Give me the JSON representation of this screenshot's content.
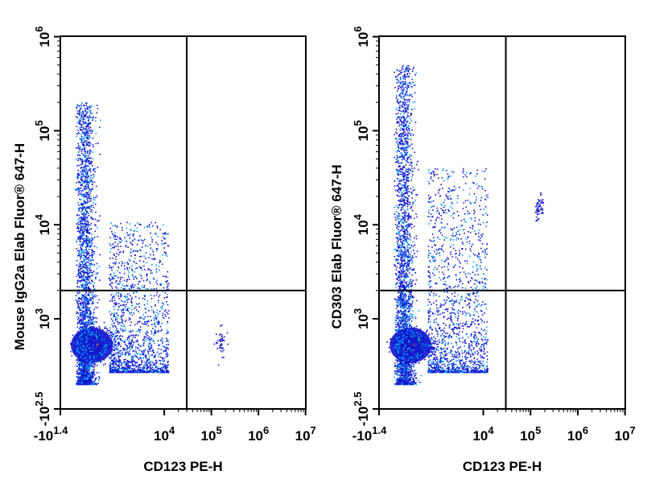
{
  "chart_data": [
    {
      "type": "scatter",
      "plot_style": "flow-cytometry pseudocolor dot plot with quadrant gates",
      "xlabel": "CD123 PE-H",
      "ylabel": "Mouse IgG2a Elab Fluor® 647-H",
      "x_scale": "biexponential",
      "y_scale": "biexponential",
      "xlim": [
        -25.1,
        10000000
      ],
      "ylim": [
        -316,
        1000000
      ],
      "x_ticks": [
        {
          "base": "-10",
          "exp": "1.4",
          "value": -25.1
        },
        {
          "base": "10",
          "exp": "4",
          "value": 10000
        },
        {
          "base": "10",
          "exp": "5",
          "value": 100000
        },
        {
          "base": "10",
          "exp": "6",
          "value": 1000000
        },
        {
          "base": "10",
          "exp": "7",
          "value": 10000000
        }
      ],
      "y_ticks": [
        {
          "base": "-10",
          "exp": "2.5",
          "value": -316
        },
        {
          "base": "10",
          "exp": "3",
          "value": 1000
        },
        {
          "base": "10",
          "exp": "4",
          "value": 10000
        },
        {
          "base": "10",
          "exp": "5",
          "value": 100000
        },
        {
          "base": "10",
          "exp": "6",
          "value": 1000000
        }
      ],
      "gate_x": 30000,
      "gate_y": 2000,
      "colors": {
        "density_scale": [
          "#1414cc",
          "#00a0ff",
          "#00e0a0",
          "#d8f000",
          "#ff8000",
          "#ff0000"
        ],
        "gates": "#000000"
      },
      "populations": [
        {
          "description": "main double-negative cluster",
          "x": 20,
          "y": -80,
          "density": "very high"
        },
        {
          "description": "CD123- tail extending to high y",
          "x_range": [
            -25,
            3000
          ],
          "y_range": [
            -300,
            200000
          ],
          "density": "medium"
        },
        {
          "description": "diffuse mid-x spread",
          "x_range": [
            30,
            10000
          ],
          "y_range": [
            -300,
            8000
          ],
          "density": "low"
        },
        {
          "description": "small CD123+ cluster",
          "x": 150000,
          "y": -40,
          "density": "low"
        }
      ]
    },
    {
      "type": "scatter",
      "plot_style": "flow-cytometry pseudocolor dot plot with quadrant gates",
      "xlabel": "CD123 PE-H",
      "ylabel": "CD303 Elab Fluor® 647-H",
      "x_scale": "biexponential",
      "y_scale": "biexponential",
      "xlim": [
        -25.1,
        10000000
      ],
      "ylim": [
        -316,
        1000000
      ],
      "x_ticks": [
        {
          "base": "-10",
          "exp": "1.4",
          "value": -25.1
        },
        {
          "base": "10",
          "exp": "4",
          "value": 10000
        },
        {
          "base": "10",
          "exp": "5",
          "value": 100000
        },
        {
          "base": "10",
          "exp": "6",
          "value": 1000000
        },
        {
          "base": "10",
          "exp": "7",
          "value": 10000000
        }
      ],
      "y_ticks": [
        {
          "base": "-10",
          "exp": "2.5",
          "value": -316
        },
        {
          "base": "10",
          "exp": "3",
          "value": 1000
        },
        {
          "base": "10",
          "exp": "4",
          "value": 10000
        },
        {
          "base": "10",
          "exp": "5",
          "value": 100000
        },
        {
          "base": "10",
          "exp": "6",
          "value": 1000000
        }
      ],
      "gate_x": 30000,
      "gate_y": 2000,
      "colors": {
        "density_scale": [
          "#1414cc",
          "#00a0ff",
          "#00e0a0",
          "#d8f000",
          "#ff8000",
          "#ff0000"
        ],
        "gates": "#000000"
      },
      "populations": [
        {
          "description": "main double-negative cluster",
          "x": 20,
          "y": -80,
          "density": "very high"
        },
        {
          "description": "CD123- tail extending to high y",
          "x_range": [
            -25,
            2000
          ],
          "y_range": [
            -300,
            500000
          ],
          "density": "medium"
        },
        {
          "description": "diffuse mid-x spread",
          "x_range": [
            30,
            10000
          ],
          "y_range": [
            -300,
            30000
          ],
          "density": "low"
        },
        {
          "description": "CD123+ CD303+ pDC cluster",
          "x": 150000,
          "y": 15000,
          "density": "low"
        }
      ]
    }
  ]
}
